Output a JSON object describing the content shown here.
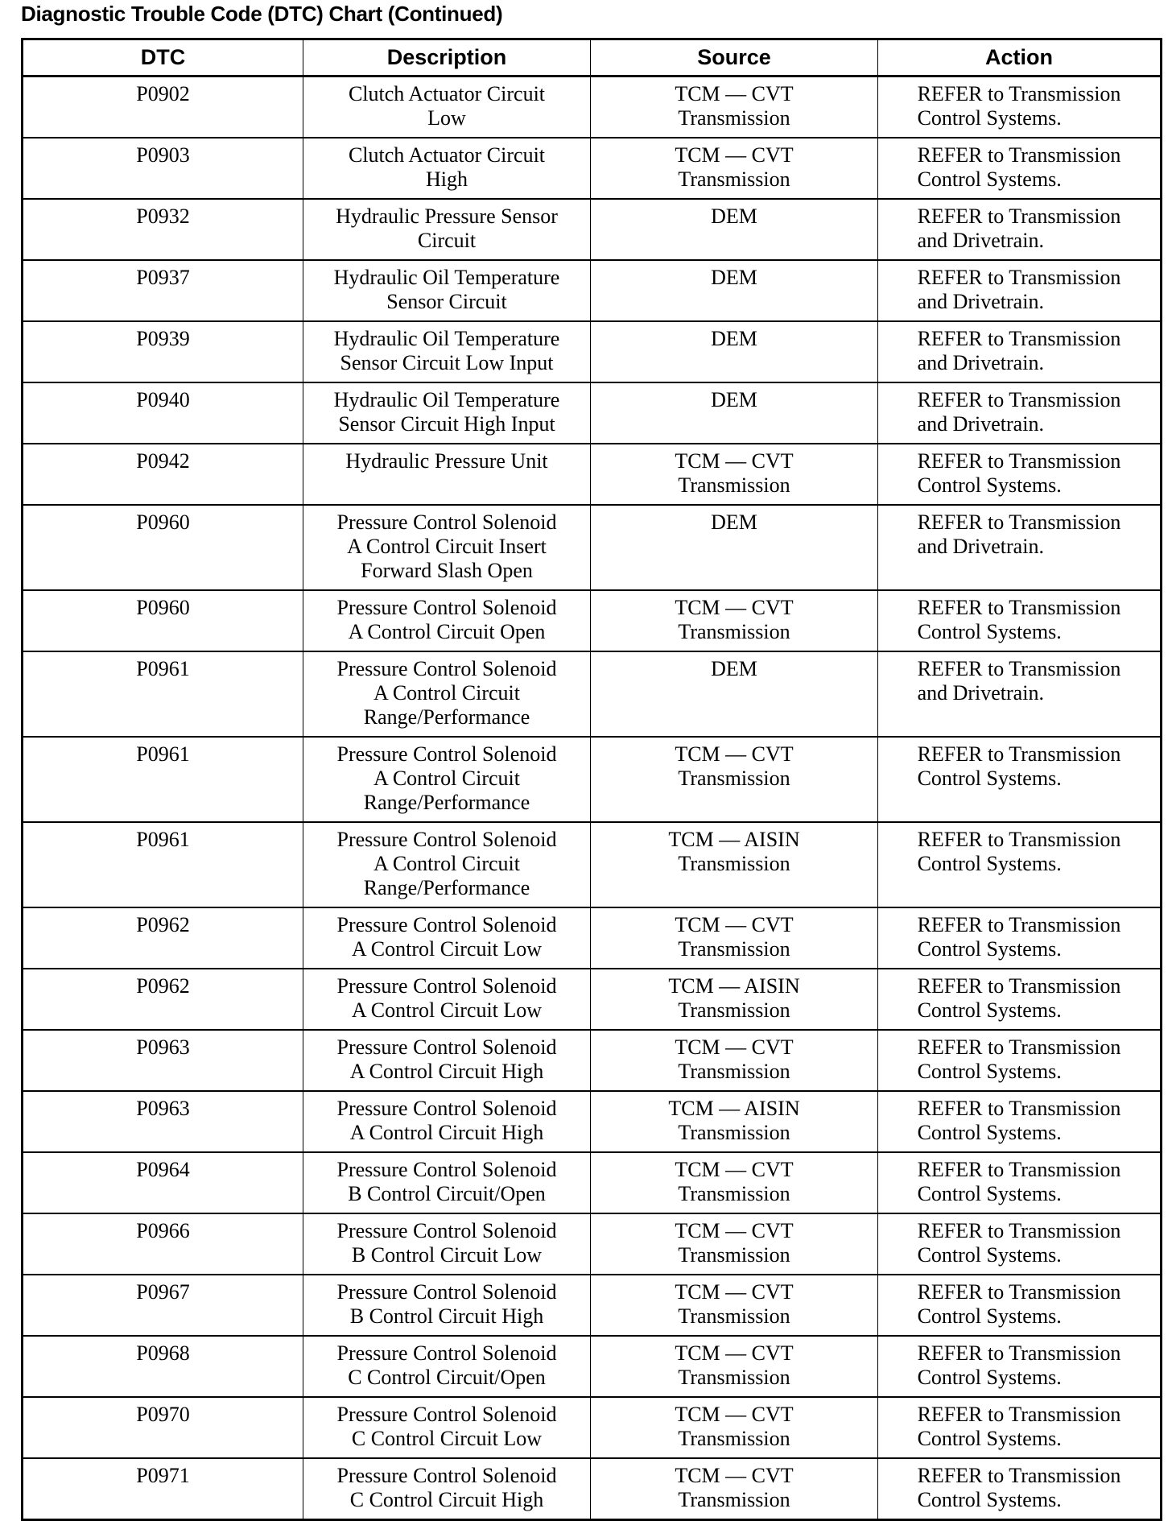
{
  "title": "Diagnostic Trouble Code (DTC) Chart (Continued)",
  "columns": [
    "DTC",
    "Description",
    "Source",
    "Action"
  ],
  "rows": [
    {
      "dtc": "P0902",
      "description": [
        "Clutch Actuator Circuit",
        "Low"
      ],
      "source": [
        "TCM — CVT",
        "Transmission"
      ],
      "action": [
        "REFER to Transmission",
        "Control Systems."
      ]
    },
    {
      "dtc": "P0903",
      "description": [
        "Clutch Actuator Circuit",
        "High"
      ],
      "source": [
        "TCM — CVT",
        "Transmission"
      ],
      "action": [
        "REFER to Transmission",
        "Control Systems."
      ]
    },
    {
      "dtc": "P0932",
      "description": [
        "Hydraulic Pressure Sensor",
        "Circuit"
      ],
      "source": [
        "DEM"
      ],
      "action": [
        "REFER to Transmission",
        "and Drivetrain."
      ]
    },
    {
      "dtc": "P0937",
      "description": [
        "Hydraulic Oil Temperature",
        "Sensor Circuit"
      ],
      "source": [
        "DEM"
      ],
      "action": [
        "REFER to Transmission",
        "and Drivetrain."
      ]
    },
    {
      "dtc": "P0939",
      "description": [
        "Hydraulic Oil Temperature",
        "Sensor Circuit Low Input"
      ],
      "source": [
        "DEM"
      ],
      "action": [
        "REFER to Transmission",
        "and Drivetrain."
      ]
    },
    {
      "dtc": "P0940",
      "description": [
        "Hydraulic Oil Temperature",
        "Sensor Circuit High Input"
      ],
      "source": [
        "DEM"
      ],
      "action": [
        "REFER to Transmission",
        "and Drivetrain."
      ]
    },
    {
      "dtc": "P0942",
      "description": [
        "Hydraulic Pressure Unit"
      ],
      "source": [
        "TCM — CVT",
        "Transmission"
      ],
      "action": [
        "REFER to Transmission",
        "Control Systems."
      ]
    },
    {
      "dtc": "P0960",
      "description": [
        "Pressure Control Solenoid",
        "A Control Circuit Insert",
        "Forward Slash Open"
      ],
      "source": [
        "DEM"
      ],
      "action": [
        "REFER to Transmission",
        "and Drivetrain."
      ]
    },
    {
      "dtc": "P0960",
      "description": [
        "Pressure Control Solenoid",
        "A Control Circuit Open"
      ],
      "source": [
        "TCM — CVT",
        "Transmission"
      ],
      "action": [
        "REFER to Transmission",
        "Control Systems."
      ]
    },
    {
      "dtc": "P0961",
      "description": [
        "Pressure Control Solenoid",
        "A Control Circuit",
        "Range/Performance"
      ],
      "source": [
        "DEM"
      ],
      "action": [
        "REFER to Transmission",
        "and Drivetrain."
      ]
    },
    {
      "dtc": "P0961",
      "description": [
        "Pressure Control Solenoid",
        "A Control Circuit",
        "Range/Performance"
      ],
      "source": [
        "TCM — CVT",
        "Transmission"
      ],
      "action": [
        "REFER to Transmission",
        "Control Systems."
      ]
    },
    {
      "dtc": "P0961",
      "description": [
        "Pressure Control Solenoid",
        "A Control Circuit",
        "Range/Performance"
      ],
      "source": [
        "TCM — AISIN",
        "Transmission"
      ],
      "action": [
        "REFER to Transmission",
        "Control Systems."
      ]
    },
    {
      "dtc": "P0962",
      "description": [
        "Pressure Control Solenoid",
        "A Control Circuit Low"
      ],
      "source": [
        "TCM — CVT",
        "Transmission"
      ],
      "action": [
        "REFER to Transmission",
        "Control Systems."
      ]
    },
    {
      "dtc": "P0962",
      "description": [
        "Pressure Control Solenoid",
        "A Control Circuit Low"
      ],
      "source": [
        "TCM — AISIN",
        "Transmission"
      ],
      "action": [
        "REFER to Transmission",
        "Control Systems."
      ]
    },
    {
      "dtc": "P0963",
      "description": [
        "Pressure Control Solenoid",
        "A Control Circuit High"
      ],
      "source": [
        "TCM — CVT",
        "Transmission"
      ],
      "action": [
        "REFER to Transmission",
        "Control Systems."
      ]
    },
    {
      "dtc": "P0963",
      "description": [
        "Pressure Control Solenoid",
        "A Control Circuit High"
      ],
      "source": [
        "TCM — AISIN",
        "Transmission"
      ],
      "action": [
        "REFER to Transmission",
        "Control Systems."
      ]
    },
    {
      "dtc": "P0964",
      "description": [
        "Pressure Control Solenoid",
        "B Control Circuit/Open"
      ],
      "source": [
        "TCM — CVT",
        "Transmission"
      ],
      "action": [
        "REFER to Transmission",
        "Control Systems."
      ]
    },
    {
      "dtc": "P0966",
      "description": [
        "Pressure Control Solenoid",
        "B Control Circuit Low"
      ],
      "source": [
        "TCM — CVT",
        "Transmission"
      ],
      "action": [
        "REFER to Transmission",
        "Control Systems."
      ]
    },
    {
      "dtc": "P0967",
      "description": [
        "Pressure Control Solenoid",
        "B Control Circuit High"
      ],
      "source": [
        "TCM — CVT",
        "Transmission"
      ],
      "action": [
        "REFER to Transmission",
        "Control Systems."
      ]
    },
    {
      "dtc": "P0968",
      "description": [
        "Pressure Control Solenoid",
        "C Control Circuit/Open"
      ],
      "source": [
        "TCM — CVT",
        "Transmission"
      ],
      "action": [
        "REFER to Transmission",
        "Control Systems."
      ]
    },
    {
      "dtc": "P0970",
      "description": [
        "Pressure Control Solenoid",
        "C Control Circuit Low"
      ],
      "source": [
        "TCM — CVT",
        "Transmission"
      ],
      "action": [
        "REFER to Transmission",
        "Control Systems."
      ]
    },
    {
      "dtc": "P0971",
      "description": [
        "Pressure Control Solenoid",
        "C Control Circuit High"
      ],
      "source": [
        "TCM — CVT",
        "Transmission"
      ],
      "action": [
        "REFER to Transmission",
        "Control Systems."
      ]
    }
  ]
}
